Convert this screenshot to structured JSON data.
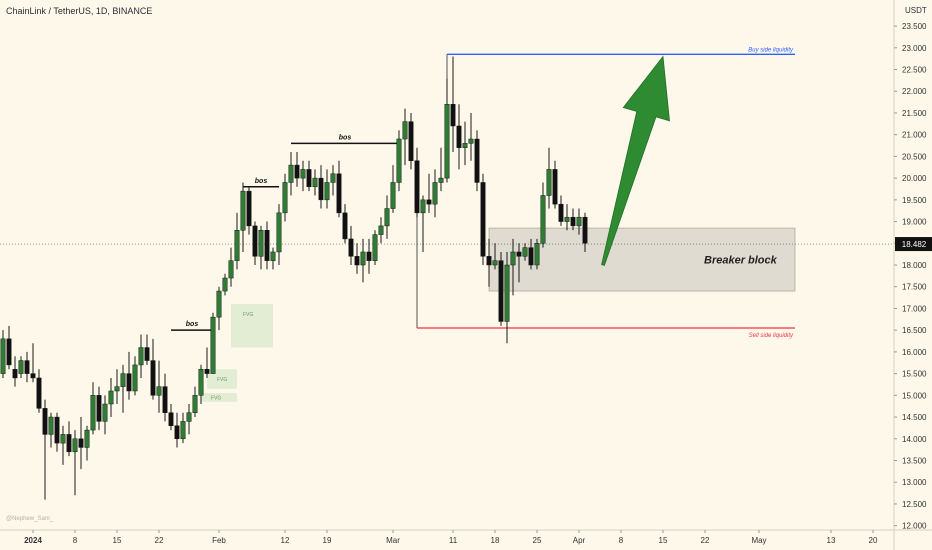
{
  "chart_data": {
    "type": "candlestick",
    "title": "ChainLink / TetherUS, 1D, BINANCE",
    "currency": "USDT",
    "price_tag": "18.482",
    "last_price": 18.482,
    "ylim": [
      11.9,
      24.1
    ],
    "y_ticks": [
      "12.000",
      "12.500",
      "13.000",
      "13.500",
      "14.000",
      "14.500",
      "15.000",
      "15.500",
      "16.000",
      "16.500",
      "17.000",
      "17.500",
      "18.000",
      "18.500",
      "19.000",
      "19.500",
      "20.000",
      "20.500",
      "21.000",
      "21.500",
      "22.000",
      "22.500",
      "23.000",
      "23.500"
    ],
    "x_ticks": [
      {
        "label": "2024",
        "day": 0,
        "bold": true
      },
      {
        "label": "8",
        "day": 7
      },
      {
        "label": "15",
        "day": 14
      },
      {
        "label": "22",
        "day": 21
      },
      {
        "label": "Feb",
        "day": 31
      },
      {
        "label": "12",
        "day": 42
      },
      {
        "label": "19",
        "day": 49
      },
      {
        "label": "Mar",
        "day": 60
      },
      {
        "label": "11",
        "day": 70
      },
      {
        "label": "18",
        "day": 77
      },
      {
        "label": "25",
        "day": 84
      },
      {
        "label": "Apr",
        "day": 91
      },
      {
        "label": "8",
        "day": 98
      },
      {
        "label": "15",
        "day": 105
      },
      {
        "label": "22",
        "day": 112
      },
      {
        "label": "May",
        "day": 121
      },
      {
        "label": "13",
        "day": 133
      },
      {
        "label": "20",
        "day": 140
      }
    ],
    "candles": [
      {
        "day": -8,
        "o": 15.7,
        "h": 17.0,
        "l": 15.5,
        "c": 16.9
      },
      {
        "day": -7,
        "o": 16.9,
        "h": 17.0,
        "l": 15.8,
        "c": 16.3
      },
      {
        "day": -6,
        "o": 16.2,
        "h": 16.4,
        "l": 15.2,
        "c": 15.4
      },
      {
        "day": -5,
        "o": 15.5,
        "h": 16.5,
        "l": 15.4,
        "c": 16.3
      },
      {
        "day": -4,
        "o": 16.3,
        "h": 16.6,
        "l": 15.6,
        "c": 15.7
      },
      {
        "day": -3,
        "o": 15.6,
        "h": 15.9,
        "l": 15.2,
        "c": 15.4
      },
      {
        "day": -2,
        "o": 15.5,
        "h": 15.9,
        "l": 15.4,
        "c": 15.8
      },
      {
        "day": -1,
        "o": 15.8,
        "h": 16.0,
        "l": 15.3,
        "c": 15.5
      },
      {
        "day": 0,
        "o": 15.5,
        "h": 16.2,
        "l": 15.3,
        "c": 15.4
      },
      {
        "day": 1,
        "o": 15.4,
        "h": 15.6,
        "l": 14.6,
        "c": 14.7
      },
      {
        "day": 2,
        "o": 14.7,
        "h": 14.9,
        "l": 12.6,
        "c": 14.1
      },
      {
        "day": 3,
        "o": 14.1,
        "h": 14.6,
        "l": 13.8,
        "c": 14.5
      },
      {
        "day": 4,
        "o": 14.5,
        "h": 14.6,
        "l": 13.7,
        "c": 13.9
      },
      {
        "day": 5,
        "o": 13.9,
        "h": 14.3,
        "l": 13.4,
        "c": 14.1
      },
      {
        "day": 6,
        "o": 14.1,
        "h": 14.4,
        "l": 13.6,
        "c": 13.7
      },
      {
        "day": 7,
        "o": 13.7,
        "h": 14.2,
        "l": 12.7,
        "c": 14.0
      },
      {
        "day": 8,
        "o": 14.0,
        "h": 14.5,
        "l": 13.3,
        "c": 13.8
      },
      {
        "day": 9,
        "o": 13.8,
        "h": 14.3,
        "l": 13.5,
        "c": 14.2
      },
      {
        "day": 10,
        "o": 14.2,
        "h": 15.3,
        "l": 14.1,
        "c": 15.0
      },
      {
        "day": 11,
        "o": 15.0,
        "h": 15.2,
        "l": 14.2,
        "c": 14.4
      },
      {
        "day": 12,
        "o": 14.4,
        "h": 15.0,
        "l": 14.1,
        "c": 14.8
      },
      {
        "day": 13,
        "o": 14.8,
        "h": 15.4,
        "l": 14.5,
        "c": 15.1
      },
      {
        "day": 14,
        "o": 15.1,
        "h": 15.6,
        "l": 14.8,
        "c": 15.2
      },
      {
        "day": 15,
        "o": 15.2,
        "h": 15.7,
        "l": 14.6,
        "c": 15.5
      },
      {
        "day": 16,
        "o": 15.5,
        "h": 16.0,
        "l": 14.9,
        "c": 15.1
      },
      {
        "day": 17,
        "o": 15.1,
        "h": 15.9,
        "l": 15.0,
        "c": 15.7
      },
      {
        "day": 18,
        "o": 15.7,
        "h": 16.4,
        "l": 15.4,
        "c": 16.1
      },
      {
        "day": 19,
        "o": 16.1,
        "h": 16.4,
        "l": 15.7,
        "c": 15.8
      },
      {
        "day": 20,
        "o": 15.8,
        "h": 16.3,
        "l": 14.9,
        "c": 15.0
      },
      {
        "day": 21,
        "o": 15.0,
        "h": 15.8,
        "l": 14.6,
        "c": 15.2
      },
      {
        "day": 22,
        "o": 15.2,
        "h": 15.5,
        "l": 14.4,
        "c": 14.6
      },
      {
        "day": 23,
        "o": 14.6,
        "h": 14.8,
        "l": 14.2,
        "c": 14.3
      },
      {
        "day": 24,
        "o": 14.3,
        "h": 14.6,
        "l": 13.8,
        "c": 14.0
      },
      {
        "day": 25,
        "o": 14.0,
        "h": 14.6,
        "l": 13.9,
        "c": 14.4
      },
      {
        "day": 26,
        "o": 14.4,
        "h": 14.8,
        "l": 14.1,
        "c": 14.6
      },
      {
        "day": 27,
        "o": 14.6,
        "h": 15.2,
        "l": 14.5,
        "c": 15.0
      },
      {
        "day": 28,
        "o": 15.0,
        "h": 15.7,
        "l": 14.8,
        "c": 15.6
      },
      {
        "day": 29,
        "o": 15.6,
        "h": 16.1,
        "l": 15.4,
        "c": 15.5
      },
      {
        "day": 30,
        "o": 15.5,
        "h": 16.9,
        "l": 15.5,
        "c": 16.8
      },
      {
        "day": 31,
        "o": 16.8,
        "h": 17.5,
        "l": 16.5,
        "c": 17.4
      },
      {
        "day": 32,
        "o": 17.4,
        "h": 17.8,
        "l": 17.3,
        "c": 17.7
      },
      {
        "day": 33,
        "o": 17.7,
        "h": 18.4,
        "l": 17.5,
        "c": 18.1
      },
      {
        "day": 34,
        "o": 18.1,
        "h": 19.2,
        "l": 17.9,
        "c": 18.8
      },
      {
        "day": 35,
        "o": 18.8,
        "h": 19.9,
        "l": 18.3,
        "c": 19.7
      },
      {
        "day": 36,
        "o": 19.7,
        "h": 19.8,
        "l": 18.7,
        "c": 18.9
      },
      {
        "day": 37,
        "o": 18.9,
        "h": 19.0,
        "l": 18.0,
        "c": 18.2
      },
      {
        "day": 38,
        "o": 18.2,
        "h": 18.9,
        "l": 17.9,
        "c": 18.8
      },
      {
        "day": 39,
        "o": 18.8,
        "h": 19.0,
        "l": 17.9,
        "c": 18.1
      },
      {
        "day": 40,
        "o": 18.1,
        "h": 18.4,
        "l": 17.9,
        "c": 18.3
      },
      {
        "day": 41,
        "o": 18.3,
        "h": 19.4,
        "l": 18.0,
        "c": 19.2
      },
      {
        "day": 42,
        "o": 19.2,
        "h": 20.1,
        "l": 19.0,
        "c": 19.9
      },
      {
        "day": 43,
        "o": 19.9,
        "h": 20.6,
        "l": 19.6,
        "c": 20.3
      },
      {
        "day": 44,
        "o": 20.3,
        "h": 20.6,
        "l": 19.8,
        "c": 20.0
      },
      {
        "day": 45,
        "o": 20.0,
        "h": 20.4,
        "l": 19.7,
        "c": 20.2
      },
      {
        "day": 46,
        "o": 20.2,
        "h": 20.4,
        "l": 19.7,
        "c": 19.8
      },
      {
        "day": 47,
        "o": 19.8,
        "h": 20.2,
        "l": 19.6,
        "c": 20.0
      },
      {
        "day": 48,
        "o": 20.0,
        "h": 20.3,
        "l": 19.3,
        "c": 19.5
      },
      {
        "day": 49,
        "o": 19.5,
        "h": 20.2,
        "l": 19.3,
        "c": 19.9
      },
      {
        "day": 50,
        "o": 19.9,
        "h": 20.3,
        "l": 19.6,
        "c": 20.1
      },
      {
        "day": 51,
        "o": 20.1,
        "h": 20.4,
        "l": 19.1,
        "c": 19.2
      },
      {
        "day": 52,
        "o": 19.2,
        "h": 19.4,
        "l": 18.5,
        "c": 18.6
      },
      {
        "day": 53,
        "o": 18.6,
        "h": 18.9,
        "l": 18.0,
        "c": 18.2
      },
      {
        "day": 54,
        "o": 18.2,
        "h": 18.5,
        "l": 17.8,
        "c": 18.0
      },
      {
        "day": 55,
        "o": 18.0,
        "h": 18.6,
        "l": 17.6,
        "c": 18.3
      },
      {
        "day": 56,
        "o": 18.3,
        "h": 18.6,
        "l": 17.8,
        "c": 18.1
      },
      {
        "day": 57,
        "o": 18.1,
        "h": 18.8,
        "l": 18.0,
        "c": 18.7
      },
      {
        "day": 58,
        "o": 18.7,
        "h": 19.1,
        "l": 18.5,
        "c": 18.9
      },
      {
        "day": 59,
        "o": 18.9,
        "h": 19.6,
        "l": 18.6,
        "c": 19.3
      },
      {
        "day": 60,
        "o": 19.3,
        "h": 20.3,
        "l": 19.2,
        "c": 19.9
      },
      {
        "day": 61,
        "o": 19.9,
        "h": 21.1,
        "l": 19.7,
        "c": 20.9
      },
      {
        "day": 62,
        "o": 20.9,
        "h": 21.6,
        "l": 20.3,
        "c": 21.3
      },
      {
        "day": 63,
        "o": 21.3,
        "h": 21.5,
        "l": 20.2,
        "c": 20.4
      },
      {
        "day": 64,
        "o": 20.4,
        "h": 20.7,
        "l": 19.1,
        "c": 19.2
      },
      {
        "day": 65,
        "o": 19.2,
        "h": 19.6,
        "l": 18.3,
        "c": 19.5
      },
      {
        "day": 66,
        "o": 19.5,
        "h": 20.1,
        "l": 19.2,
        "c": 19.4
      },
      {
        "day": 67,
        "o": 19.4,
        "h": 20.2,
        "l": 19.1,
        "c": 19.9
      },
      {
        "day": 68,
        "o": 19.9,
        "h": 20.7,
        "l": 19.7,
        "c": 20.0
      },
      {
        "day": 69,
        "o": 20.0,
        "h": 22.3,
        "l": 19.9,
        "c": 21.7
      },
      {
        "day": 70,
        "o": 21.7,
        "h": 22.8,
        "l": 20.6,
        "c": 21.2
      },
      {
        "day": 71,
        "o": 21.2,
        "h": 21.7,
        "l": 20.2,
        "c": 20.7
      },
      {
        "day": 72,
        "o": 20.7,
        "h": 21.3,
        "l": 20.3,
        "c": 20.8
      },
      {
        "day": 73,
        "o": 20.8,
        "h": 21.5,
        "l": 20.4,
        "c": 20.9
      },
      {
        "day": 74,
        "o": 20.9,
        "h": 21.1,
        "l": 19.7,
        "c": 19.9
      },
      {
        "day": 75,
        "o": 19.9,
        "h": 20.1,
        "l": 18.0,
        "c": 18.2
      },
      {
        "day": 76,
        "o": 18.2,
        "h": 18.6,
        "l": 17.5,
        "c": 18.0
      },
      {
        "day": 77,
        "o": 18.0,
        "h": 18.5,
        "l": 17.9,
        "c": 18.1
      },
      {
        "day": 78,
        "o": 18.1,
        "h": 18.3,
        "l": 16.6,
        "c": 16.7
      },
      {
        "day": 79,
        "o": 16.7,
        "h": 18.3,
        "l": 16.2,
        "c": 18.0
      },
      {
        "day": 80,
        "o": 18.0,
        "h": 18.6,
        "l": 17.3,
        "c": 18.3
      },
      {
        "day": 81,
        "o": 18.3,
        "h": 18.5,
        "l": 17.6,
        "c": 18.2
      },
      {
        "day": 82,
        "o": 18.2,
        "h": 18.5,
        "l": 18.1,
        "c": 18.4
      },
      {
        "day": 83,
        "o": 18.4,
        "h": 18.6,
        "l": 17.9,
        "c": 18.0
      },
      {
        "day": 84,
        "o": 18.0,
        "h": 18.6,
        "l": 17.9,
        "c": 18.5
      },
      {
        "day": 85,
        "o": 18.5,
        "h": 19.9,
        "l": 18.4,
        "c": 19.6
      },
      {
        "day": 86,
        "o": 19.6,
        "h": 20.7,
        "l": 19.3,
        "c": 20.2
      },
      {
        "day": 87,
        "o": 20.2,
        "h": 20.4,
        "l": 19.3,
        "c": 19.4
      },
      {
        "day": 88,
        "o": 19.4,
        "h": 19.6,
        "l": 18.9,
        "c": 19.0
      },
      {
        "day": 89,
        "o": 19.0,
        "h": 19.4,
        "l": 18.8,
        "c": 19.1
      },
      {
        "day": 90,
        "o": 19.1,
        "h": 19.3,
        "l": 18.8,
        "c": 18.9
      },
      {
        "day": 91,
        "o": 18.9,
        "h": 19.3,
        "l": 18.7,
        "c": 19.1
      },
      {
        "day": 92,
        "o": 19.1,
        "h": 19.2,
        "l": 18.3,
        "c": 18.5
      }
    ],
    "annotations": {
      "bos": [
        {
          "label": "bos",
          "x_from": 23,
          "x_to": 30,
          "y": 16.5
        },
        {
          "label": "bos",
          "x_from": 35,
          "x_to": 41,
          "y": 19.8
        },
        {
          "label": "bos",
          "x_from": 43,
          "x_to": 61,
          "y": 20.8
        }
      ],
      "fvg": [
        {
          "label": "FVG",
          "x_from": 33,
          "x_to": 40,
          "y_low": 16.1,
          "y_high": 17.1
        },
        {
          "label": "FVG",
          "x_from": 29,
          "x_to": 34,
          "y_low": 15.15,
          "y_high": 15.6
        },
        {
          "label": "FVG",
          "x_from": 28,
          "x_to": 34,
          "y_low": 14.85,
          "y_high": 15.05
        }
      ],
      "buy_side_liquidity": {
        "label": "Buy side liquidity",
        "x_from": 69,
        "x_to": 127,
        "y": 22.85,
        "color": "#2962ff"
      },
      "sell_side_liquidity": {
        "label": "Sell side liquidity",
        "x_from": 64,
        "x_to": 127,
        "y": 16.55,
        "color": "#f23645"
      },
      "breaker_block": {
        "label": "Breaker block",
        "x_from": 76,
        "x_to": 127,
        "y_low": 17.4,
        "y_high": 18.85
      },
      "arrow": {
        "from_x": 95,
        "from_y": 18.0,
        "to_x": 105,
        "to_y": 22.8,
        "color": "#2e8b32"
      }
    },
    "watermark": "@Nephew_Sam_"
  }
}
